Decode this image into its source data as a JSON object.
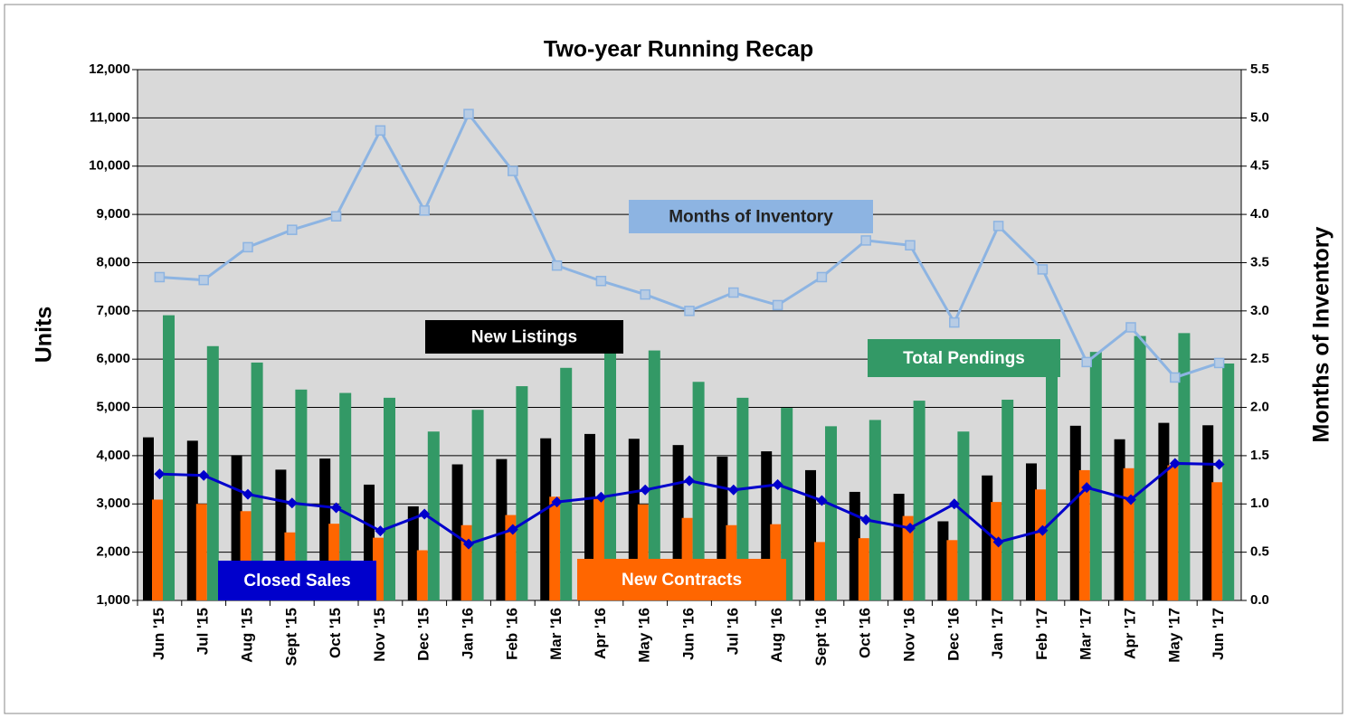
{
  "chart_data": {
    "type": "bar",
    "title": "Two-year Running Recap",
    "y_label": "Units",
    "y2_label": "Months of Inventory",
    "categories": [
      "Jun '15",
      "Jul '15",
      "Aug '15",
      "Sept '15",
      "Oct '15",
      "Nov '15",
      "Dec '15",
      "Jan '16",
      "Feb '16",
      "Mar '16",
      "Apr '16",
      "May '16",
      "Jun '16",
      "Jul '16",
      "Aug '16",
      "Sept '16",
      "Oct '16",
      "Nov '16",
      "Dec '16",
      "Jan '17",
      "Feb '17",
      "Mar '17",
      "Apr '17",
      "May '17",
      "Jun '17"
    ],
    "series": [
      {
        "name": "New Listings",
        "type": "bar",
        "color": "#000000",
        "values": [
          4380,
          4310,
          4010,
          3710,
          3940,
          3400,
          2950,
          3820,
          3930,
          4360,
          4450,
          4350,
          4220,
          3980,
          4090,
          3700,
          3250,
          3210,
          2640,
          3590,
          3840,
          4620,
          4340,
          4680,
          4630
        ]
      },
      {
        "name": "New Contracts",
        "type": "bar",
        "color": "#ff6600",
        "values": [
          3090,
          3000,
          2850,
          2410,
          2590,
          2300,
          2040,
          2560,
          2770,
          3150,
          3150,
          2990,
          2710,
          2560,
          2580,
          2210,
          2290,
          2750,
          2250,
          3040,
          3300,
          3700,
          3740,
          3800,
          3450
        ]
      },
      {
        "name": "Total Pendings",
        "type": "bar",
        "color": "#339966",
        "values": [
          6910,
          6270,
          5930,
          5370,
          5300,
          5200,
          4500,
          4950,
          5440,
          5820,
          6150,
          6180,
          5530,
          5200,
          4990,
          4610,
          4740,
          5140,
          4500,
          5160,
          5800,
          6150,
          6480,
          6540,
          5910
        ]
      },
      {
        "name": "Closed Sales",
        "type": "line",
        "color": "#0000cc",
        "values": [
          3620,
          3590,
          3200,
          3020,
          2920,
          2440,
          2790,
          2170,
          2470,
          3040,
          3140,
          3290,
          3480,
          3290,
          3400,
          3070,
          2670,
          2500,
          3000,
          2210,
          2450,
          3340,
          3090,
          3840,
          3820
        ]
      },
      {
        "name": "Months of Inventory",
        "type": "line",
        "axis": "y2",
        "color": "#8db4e2",
        "values": [
          3.35,
          3.32,
          3.66,
          3.84,
          3.98,
          4.87,
          4.04,
          5.04,
          4.45,
          3.47,
          3.31,
          3.17,
          3.0,
          3.19,
          3.06,
          3.35,
          3.73,
          3.68,
          2.88,
          3.88,
          3.43,
          2.47,
          2.83,
          2.31,
          2.46
        ]
      }
    ],
    "ylim": [
      1000,
      12000
    ],
    "yticks": [
      {
        "value": 1000,
        "label": "1,000"
      },
      {
        "value": 2000,
        "label": "2,000"
      },
      {
        "value": 3000,
        "label": "3,000"
      },
      {
        "value": 4000,
        "label": "4,000"
      },
      {
        "value": 5000,
        "label": "5,000"
      },
      {
        "value": 6000,
        "label": "6,000"
      },
      {
        "value": 7000,
        "label": "7,000"
      },
      {
        "value": 8000,
        "label": "8,000"
      },
      {
        "value": 9000,
        "label": "9,000"
      },
      {
        "value": 10000,
        "label": "10,000"
      },
      {
        "value": 11000,
        "label": "11,000"
      },
      {
        "value": 12000,
        "label": "12,000"
      }
    ],
    "y2lim": [
      0,
      5.5
    ],
    "y2ticks": [
      {
        "value": 0,
        "label": "0.0"
      },
      0.5,
      {
        "value": 1,
        "label": "1.0"
      },
      1.5,
      {
        "value": 2,
        "label": "2.0"
      },
      2.5,
      {
        "value": 3,
        "label": "3.0"
      },
      3.5,
      {
        "value": 4,
        "label": "4.0"
      },
      4.5,
      {
        "value": 5,
        "label": "5.0"
      },
      5.5
    ],
    "grid": true,
    "plot_background": "#d9d9d9"
  }
}
